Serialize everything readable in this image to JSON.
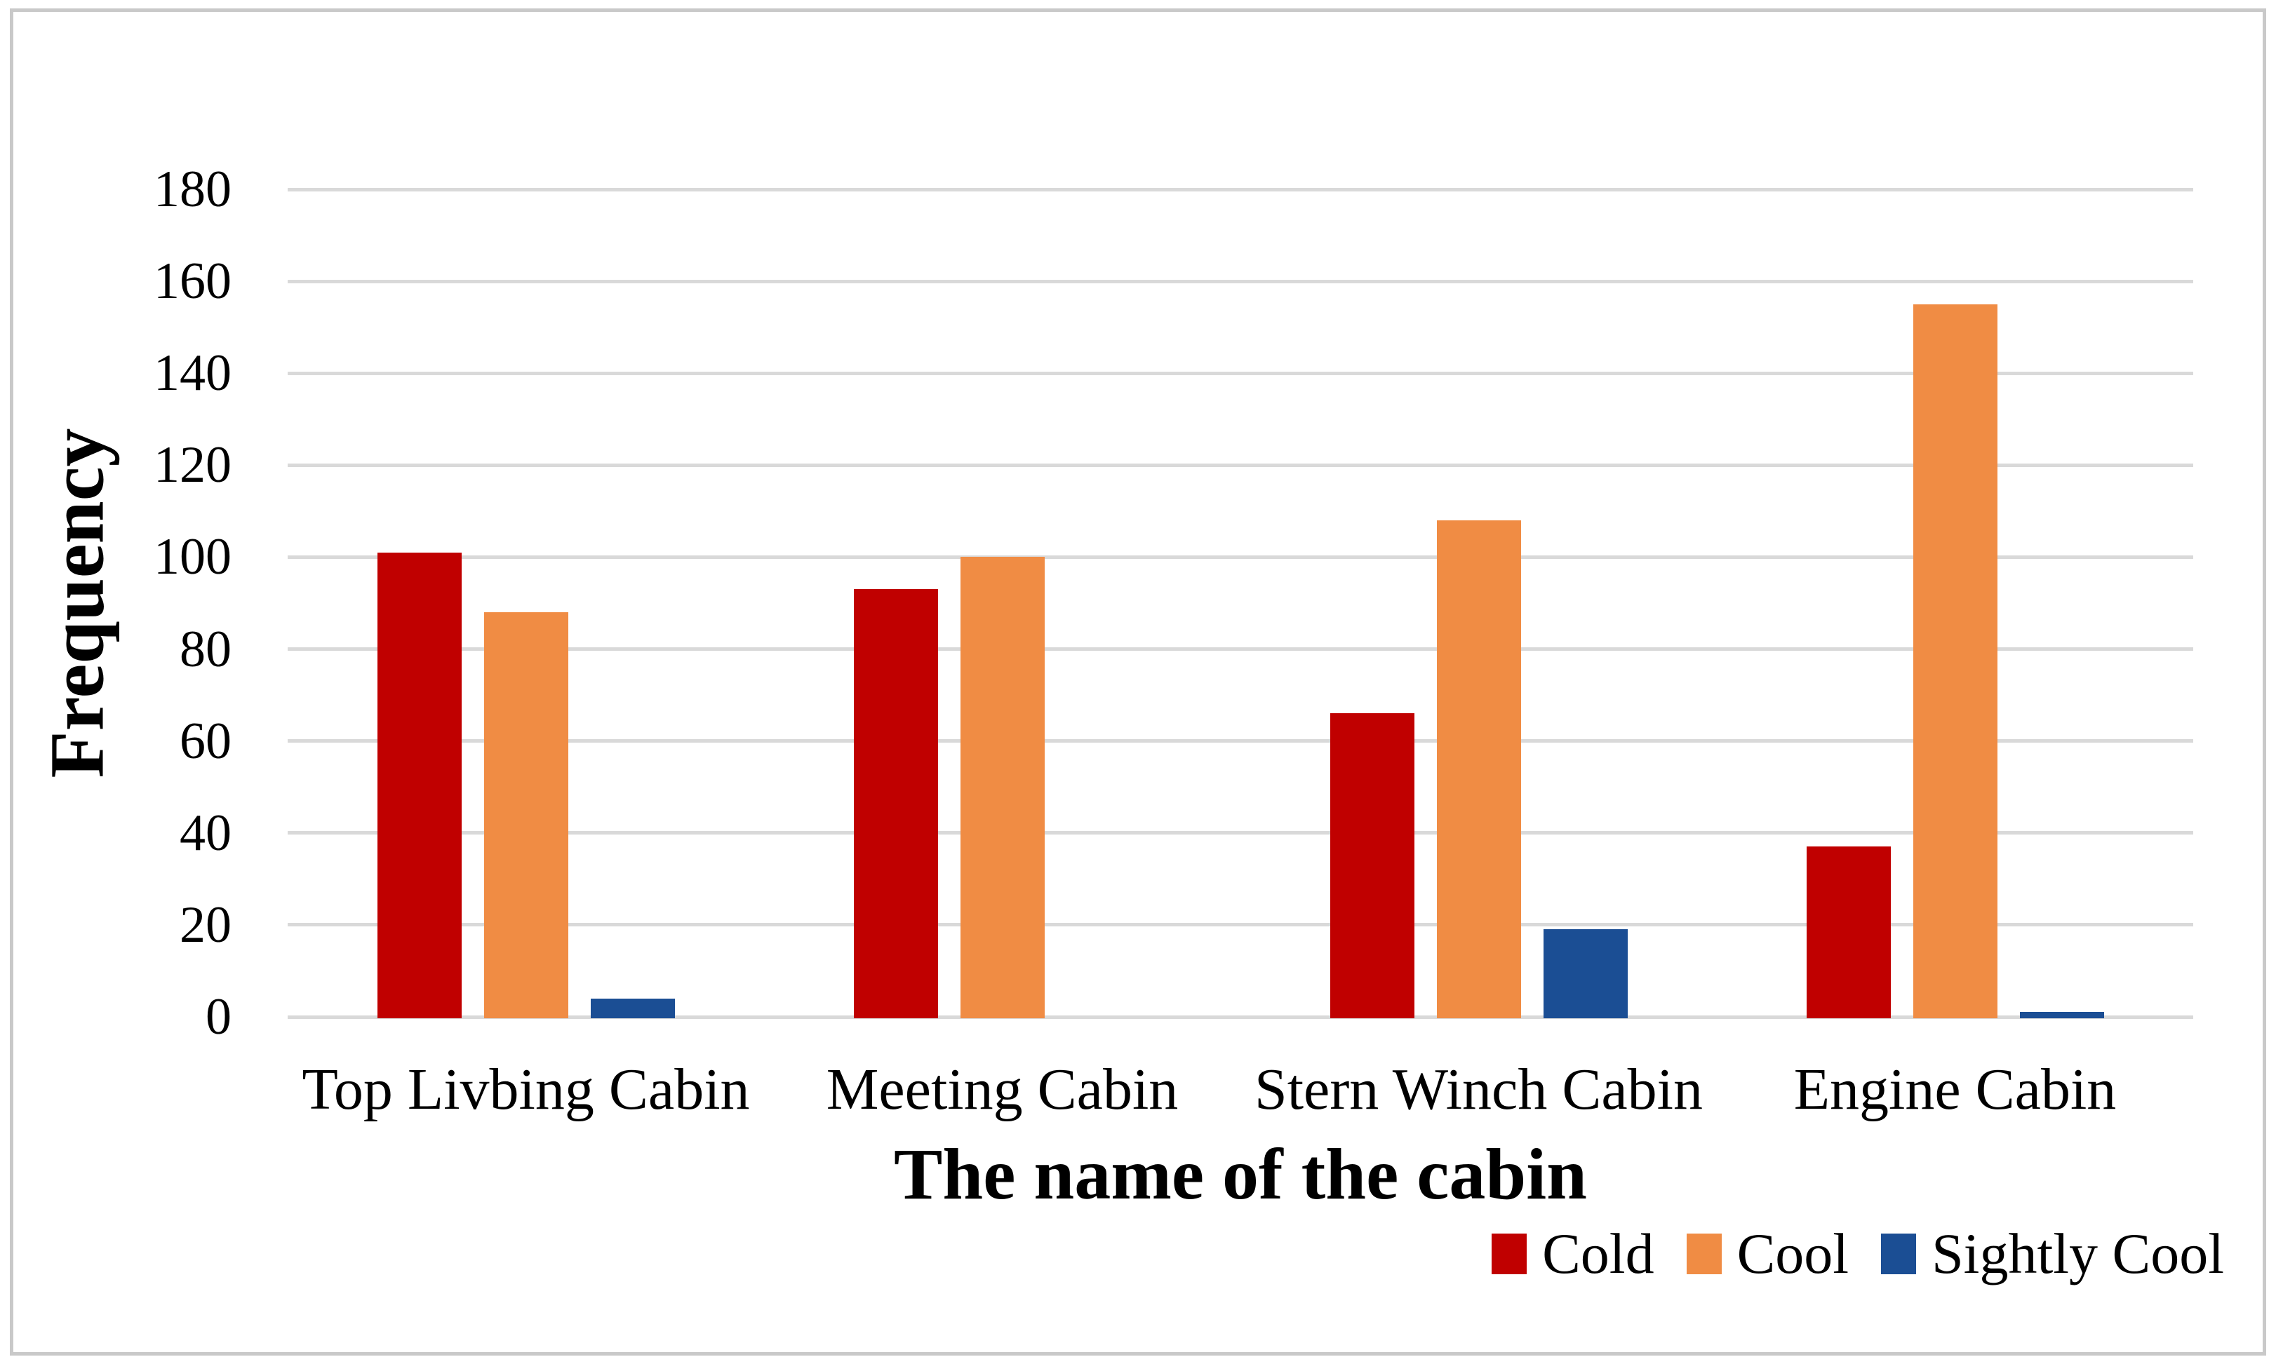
{
  "figure": {
    "background": "#ffffff",
    "border_color": "#c9c9c9"
  },
  "chart_data": {
    "type": "bar",
    "title": "",
    "xlabel": "The name of the cabin",
    "ylabel": "Frequency",
    "categories": [
      "Top Livbing Cabin",
      "Meeting Cabin",
      "Stern Winch Cabin",
      "Engine Cabin"
    ],
    "series": [
      {
        "name": "Cold",
        "color": "#c00000",
        "values": [
          101,
          93,
          66,
          37
        ]
      },
      {
        "name": "Cool",
        "color": "#f08c44",
        "values": [
          88,
          100,
          108,
          155
        ]
      },
      {
        "name": "Sightly Cool",
        "color": "#1b4e94",
        "values": [
          4,
          0,
          19,
          1
        ]
      }
    ],
    "ylim": [
      0,
      180
    ],
    "ytick_step": 20,
    "yticks": [
      180,
      160,
      140,
      120,
      100,
      80,
      60,
      40,
      20,
      0
    ],
    "grid": "horizontal",
    "gridline_color": "#d9d9d9",
    "legend_position": "bottom-right"
  }
}
